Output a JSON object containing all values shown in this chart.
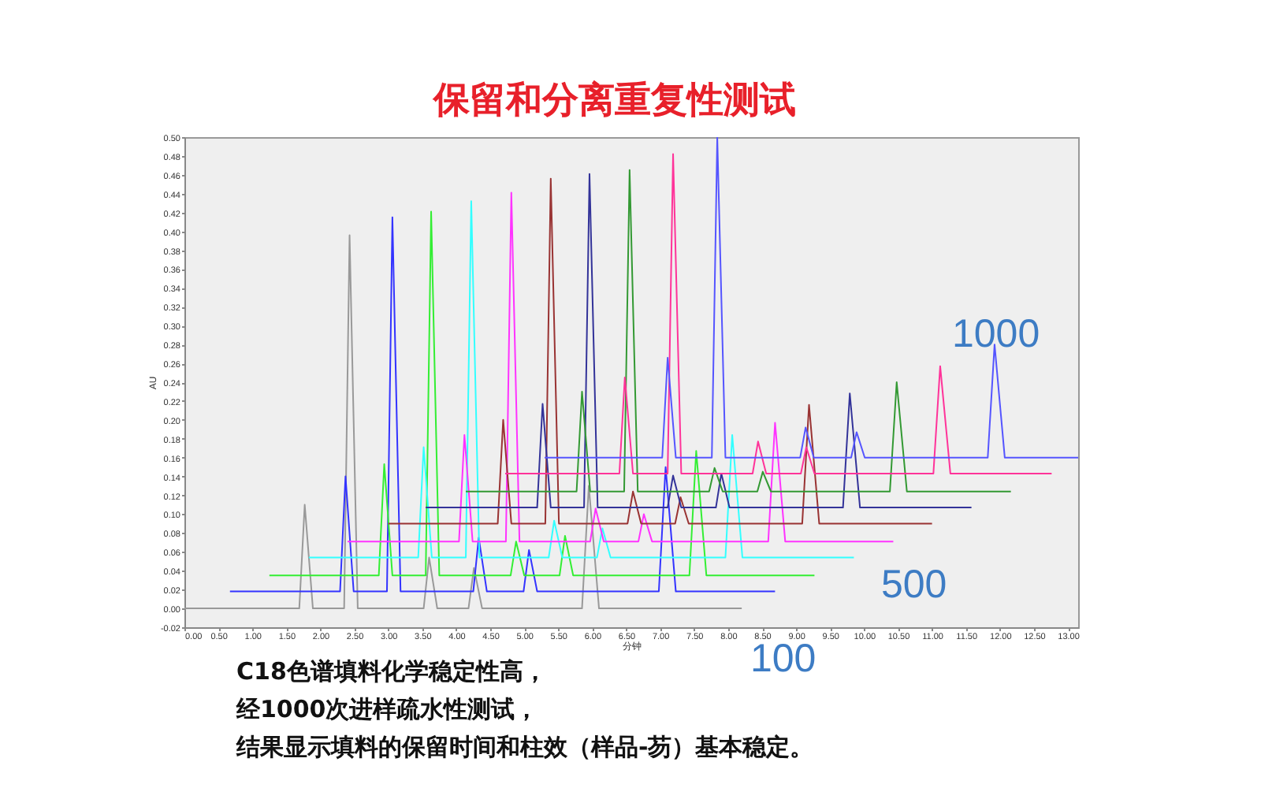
{
  "chart_data": {
    "type": "line",
    "title": "保留和分离重复性测试",
    "xlabel": "分钟",
    "ylabel": "AU",
    "annotations": [
      "1000",
      "500",
      "100",
      "C18色谱填料化学稳定性高，",
      "经1000次进样疏水性测试，",
      "结果显示填料的保留时间和柱效（样品-芴）基本稳定。"
    ],
    "xlim": [
      0,
      13.15
    ],
    "ylim": [
      -0.02,
      0.5
    ],
    "xticks": [
      {
        "value": 0,
        "label": "0.00"
      },
      {
        "value": 0.5,
        "label": "0.50"
      },
      {
        "value": 1,
        "label": "1.00"
      },
      {
        "value": 1.5,
        "label": "1.50"
      },
      {
        "value": 2,
        "label": "2.00"
      },
      {
        "value": 2.5,
        "label": "2.50"
      },
      {
        "value": 3,
        "label": "3.00"
      },
      {
        "value": 3.5,
        "label": "3.50"
      },
      {
        "value": 4,
        "label": "4.00"
      },
      {
        "value": 4.5,
        "label": "4.50"
      },
      {
        "value": 5,
        "label": "5.00"
      },
      {
        "value": 5.5,
        "label": "5.50"
      },
      {
        "value": 6,
        "label": "6.00"
      },
      {
        "value": 6.5,
        "label": "6.50"
      },
      {
        "value": 7,
        "label": "7.00"
      },
      {
        "value": 7.5,
        "label": "7.50"
      },
      {
        "value": 8,
        "label": "8.00"
      },
      {
        "value": 8.5,
        "label": "8.50"
      },
      {
        "value": 9,
        "label": "9.00"
      },
      {
        "value": 9.5,
        "label": "9.50"
      },
      {
        "value": 10,
        "label": "10.00"
      },
      {
        "value": 10.5,
        "label": "10.50"
      },
      {
        "value": 11,
        "label": "11.00"
      },
      {
        "value": 11.5,
        "label": "11.50"
      },
      {
        "value": 12,
        "label": "12.00"
      },
      {
        "value": 12.5,
        "label": "12.50"
      },
      {
        "value": 13,
        "label": "13.00"
      }
    ],
    "yticks": [
      {
        "value": -0.02,
        "label": "-0.02"
      },
      {
        "value": 0,
        "label": "0.00"
      },
      {
        "value": 0.02,
        "label": "0.02"
      },
      {
        "value": 0.04,
        "label": "0.04"
      },
      {
        "value": 0.06,
        "label": "0.06"
      },
      {
        "value": 0.08,
        "label": "0.08"
      },
      {
        "value": 0.1,
        "label": "0.10"
      },
      {
        "value": 0.12,
        "label": "0.12"
      },
      {
        "value": 0.14,
        "label": "0.14"
      },
      {
        "value": 0.16,
        "label": "0.16"
      },
      {
        "value": 0.18,
        "label": "0.18"
      },
      {
        "value": 0.2,
        "label": "0.20"
      },
      {
        "value": 0.22,
        "label": "0.22"
      },
      {
        "value": 0.24,
        "label": "0.24"
      },
      {
        "value": 0.26,
        "label": "0.26"
      },
      {
        "value": 0.28,
        "label": "0.28"
      },
      {
        "value": 0.3,
        "label": "0.30"
      },
      {
        "value": 0.32,
        "label": "0.32"
      },
      {
        "value": 0.34,
        "label": "0.34"
      },
      {
        "value": 0.36,
        "label": "0.36"
      },
      {
        "value": 0.38,
        "label": "0.38"
      },
      {
        "value": 0.4,
        "label": "0.40"
      },
      {
        "value": 0.42,
        "label": "0.42"
      },
      {
        "value": 0.44,
        "label": "0.44"
      },
      {
        "value": 0.46,
        "label": "0.46"
      },
      {
        "value": 0.48,
        "label": "0.48"
      },
      {
        "value": 0.5,
        "label": "0.50"
      }
    ],
    "grid": false,
    "legend": false,
    "marker": "none",
    "line_style": "solid",
    "series": [
      {
        "color": "#999999",
        "x": [
          0,
          1.69,
          1.77,
          1.89,
          2.35,
          2.43,
          2.55,
          3.52,
          3.6,
          3.72,
          4.18,
          4.26,
          4.38,
          5.85,
          5.95,
          6.1,
          8.2
        ],
        "values": [
          0,
          0,
          0.11,
          0,
          0,
          0.396,
          0,
          0,
          0.054,
          0,
          0,
          0.043,
          0,
          0,
          0.13,
          0,
          0
        ]
      },
      {
        "color": "#3333ff",
        "x": [
          0.67,
          2.29,
          2.37,
          2.49,
          2.98,
          3.06,
          3.18,
          4.25,
          4.33,
          4.45,
          4.99,
          5.07,
          5.19,
          6.98,
          7.08,
          7.23,
          8.69
        ],
        "values": [
          0.018,
          0.018,
          0.14,
          0.018,
          0.018,
          0.415,
          0.018,
          0.018,
          0.075,
          0.018,
          0.018,
          0.062,
          0.018,
          0.018,
          0.15,
          0.018,
          0.018
        ]
      },
      {
        "color": "#33ee33",
        "x": [
          1.25,
          2.86,
          2.94,
          3.06,
          3.55,
          3.63,
          3.75,
          4.8,
          4.88,
          5.0,
          5.52,
          5.6,
          5.72,
          7.43,
          7.53,
          7.68,
          9.27
        ],
        "values": [
          0.035,
          0.035,
          0.153,
          0.035,
          0.035,
          0.421,
          0.035,
          0.035,
          0.071,
          0.035,
          0.035,
          0.077,
          0.035,
          0.035,
          0.167,
          0.035,
          0.035
        ]
      },
      {
        "color": "#33ffff",
        "x": [
          1.83,
          3.44,
          3.52,
          3.64,
          4.14,
          4.22,
          4.34,
          5.36,
          5.44,
          5.56,
          6.07,
          6.15,
          6.27,
          7.96,
          8.06,
          8.21,
          9.85
        ],
        "values": [
          0.054,
          0.054,
          0.171,
          0.054,
          0.054,
          0.432,
          0.054,
          0.054,
          0.093,
          0.054,
          0.054,
          0.085,
          0.054,
          0.054,
          0.184,
          0.054,
          0.054
        ]
      },
      {
        "color": "#ff33ff",
        "x": [
          2.4,
          4.04,
          4.12,
          4.24,
          4.73,
          4.81,
          4.93,
          5.97,
          6.05,
          6.17,
          6.68,
          6.76,
          6.88,
          8.59,
          8.69,
          8.84,
          10.43
        ],
        "values": [
          0.071,
          0.071,
          0.184,
          0.071,
          0.071,
          0.441,
          0.071,
          0.071,
          0.106,
          0.071,
          0.071,
          0.1,
          0.071,
          0.071,
          0.197,
          0.071,
          0.071
        ]
      },
      {
        "color": "#993333",
        "x": [
          3.0,
          4.61,
          4.69,
          4.81,
          5.31,
          5.39,
          5.51,
          6.52,
          6.6,
          6.72,
          7.22,
          7.3,
          7.42,
          9.09,
          9.19,
          9.34,
          11.0
        ],
        "values": [
          0.09,
          0.09,
          0.2,
          0.09,
          0.09,
          0.456,
          0.09,
          0.09,
          0.124,
          0.09,
          0.09,
          0.118,
          0.09,
          0.09,
          0.216,
          0.09,
          0.09
        ]
      },
      {
        "color": "#333399",
        "x": [
          3.55,
          5.19,
          5.27,
          5.39,
          5.88,
          5.96,
          6.08,
          7.11,
          7.19,
          7.31,
          7.82,
          7.9,
          8.02,
          9.69,
          9.79,
          9.94,
          11.58
        ],
        "values": [
          0.107,
          0.107,
          0.217,
          0.107,
          0.107,
          0.461,
          0.107,
          0.107,
          0.141,
          0.107,
          0.107,
          0.143,
          0.107,
          0.107,
          0.228,
          0.107,
          0.107
        ]
      },
      {
        "color": "#339933",
        "x": [
          4.14,
          5.77,
          5.85,
          5.97,
          6.47,
          6.55,
          6.67,
          7.72,
          7.8,
          7.92,
          8.43,
          8.51,
          8.63,
          10.38,
          10.48,
          10.63,
          12.16
        ],
        "values": [
          0.124,
          0.124,
          0.23,
          0.124,
          0.124,
          0.465,
          0.124,
          0.124,
          0.149,
          0.124,
          0.124,
          0.145,
          0.124,
          0.124,
          0.24,
          0.124,
          0.124
        ]
      },
      {
        "color": "#ff3399",
        "x": [
          4.72,
          6.4,
          6.48,
          6.6,
          7.11,
          7.19,
          7.31,
          8.36,
          8.44,
          8.56,
          9.07,
          9.15,
          9.27,
          11.02,
          11.12,
          11.27,
          12.76
        ],
        "values": [
          0.143,
          0.143,
          0.245,
          0.143,
          0.143,
          0.482,
          0.143,
          0.143,
          0.177,
          0.143,
          0.143,
          0.171,
          0.143,
          0.143,
          0.257,
          0.143,
          0.143
        ]
      },
      {
        "color": "#5555ff",
        "x": [
          5.3,
          7.03,
          7.11,
          7.23,
          7.76,
          7.84,
          7.96,
          9.06,
          9.14,
          9.26,
          9.81,
          9.89,
          10.01,
          11.82,
          11.92,
          12.07,
          13.15
        ],
        "values": [
          0.16,
          0.16,
          0.266,
          0.16,
          0.16,
          0.5,
          0.16,
          0.16,
          0.192,
          0.16,
          0.16,
          0.187,
          0.16,
          0.16,
          0.28,
          0.16,
          0.16
        ]
      }
    ]
  }
}
